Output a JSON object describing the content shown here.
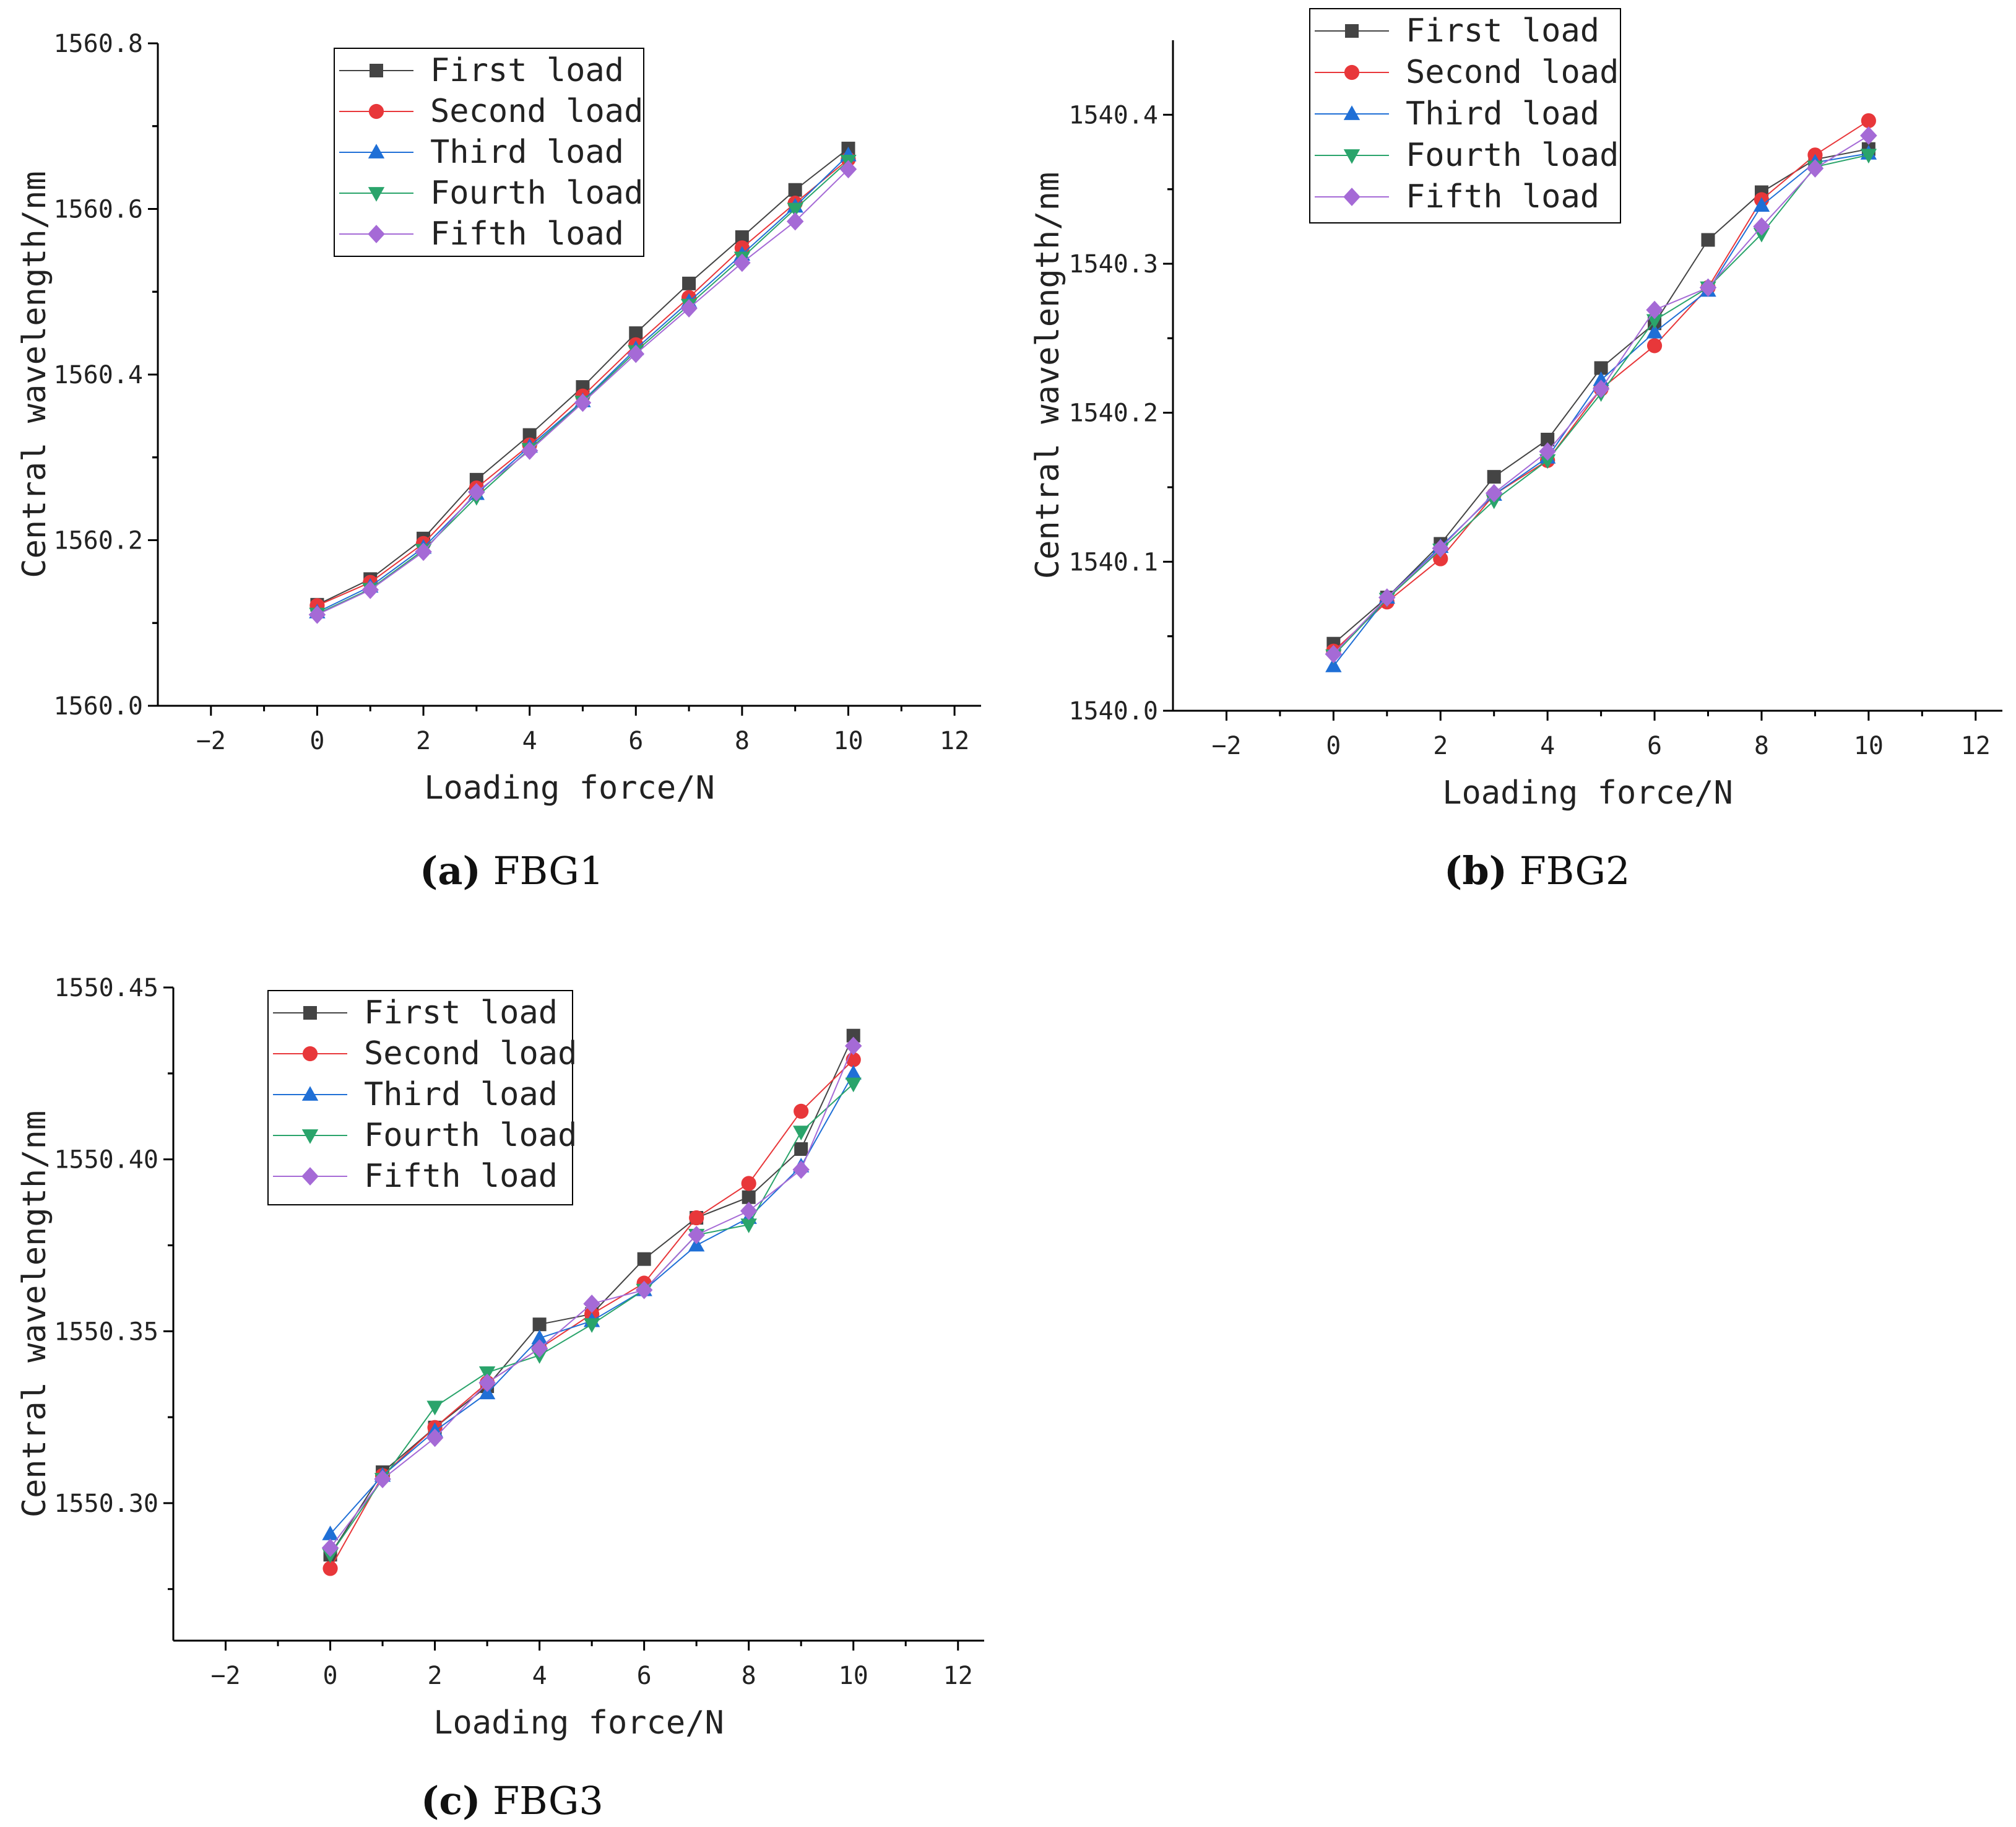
{
  "figure": {
    "colors": {
      "First load": "#444444",
      "Second load": "#e8373a",
      "Third load": "#1f6fd6",
      "Fourth load": "#2aa46b",
      "Fifth load": "#a56ad6"
    },
    "markers": {
      "First load": "square",
      "Second load": "circle",
      "Third load": "triangle-up",
      "Fourth load": "triangle-down",
      "Fifth load": "diamond"
    }
  },
  "chart_data": [
    {
      "id": "a",
      "type": "line",
      "caption_label": "(a)",
      "caption_text": "FBG1",
      "xlabel": "Loading force/N",
      "ylabel": "Central wavelength/nm",
      "xlim": [
        -3,
        12.5
      ],
      "ylim": [
        1560.0,
        1560.8
      ],
      "xticks": [
        -2,
        0,
        2,
        4,
        6,
        8,
        10,
        12
      ],
      "yticks": [
        1560.0,
        1560.2,
        1560.4,
        1560.6,
        1560.8
      ],
      "ytick_labels": [
        "1560.0",
        "1560.2",
        "1560.4",
        "1560.6",
        "1560.8"
      ],
      "legend_position": "top-center",
      "x": [
        0,
        1,
        2,
        3,
        4,
        5,
        6,
        7,
        8,
        9,
        10
      ],
      "series": [
        {
          "name": "First load",
          "values": [
            1560.122,
            1560.153,
            1560.202,
            1560.273,
            1560.327,
            1560.385,
            1560.45,
            1560.51,
            1560.566,
            1560.623,
            1560.673
          ]
        },
        {
          "name": "Second load",
          "values": [
            1560.121,
            1560.149,
            1560.196,
            1560.263,
            1560.315,
            1560.374,
            1560.436,
            1560.493,
            1560.553,
            1560.607,
            1560.66
          ]
        },
        {
          "name": "Third load",
          "values": [
            1560.113,
            1560.144,
            1560.191,
            1560.256,
            1560.313,
            1560.368,
            1560.431,
            1560.488,
            1560.545,
            1560.603,
            1560.665
          ]
        },
        {
          "name": "Fourth load",
          "values": [
            1560.111,
            1560.141,
            1560.188,
            1560.252,
            1560.31,
            1560.367,
            1560.428,
            1560.484,
            1560.541,
            1560.6,
            1560.658
          ]
        },
        {
          "name": "Fifth load",
          "values": [
            1560.11,
            1560.14,
            1560.186,
            1560.258,
            1560.308,
            1560.366,
            1560.425,
            1560.48,
            1560.535,
            1560.585,
            1560.648
          ]
        }
      ]
    },
    {
      "id": "b",
      "type": "line",
      "caption_label": "(b)",
      "caption_text": "FBG2",
      "xlabel": "Loading force/N",
      "ylabel": "Central wavelength/nm",
      "xlim": [
        -3,
        12.5
      ],
      "ylim": [
        1540.0,
        1540.45
      ],
      "xticks": [
        -2,
        0,
        2,
        4,
        6,
        8,
        10,
        12
      ],
      "yticks": [
        1540.0,
        1540.1,
        1540.2,
        1540.3,
        1540.4
      ],
      "ytick_labels": [
        "1540.0",
        "1540.1",
        "1540.2",
        "1540.3",
        "1540.4"
      ],
      "legend_position": "top-center",
      "x": [
        0,
        1,
        2,
        3,
        4,
        5,
        6,
        7,
        8,
        9,
        10
      ],
      "series": [
        {
          "name": "First load",
          "values": [
            1540.045,
            1540.076,
            1540.112,
            1540.157,
            1540.182,
            1540.23,
            1540.26,
            1540.316,
            1540.348,
            1540.37,
            1540.377
          ]
        },
        {
          "name": "Second load",
          "values": [
            1540.04,
            1540.073,
            1540.102,
            1540.145,
            1540.168,
            1540.216,
            1540.245,
            1540.284,
            1540.343,
            1540.373,
            1540.396
          ]
        },
        {
          "name": "Third load",
          "values": [
            1540.03,
            1540.076,
            1540.11,
            1540.145,
            1540.17,
            1540.222,
            1540.254,
            1540.282,
            1540.339,
            1540.368,
            1540.374
          ]
        },
        {
          "name": "Fourth load",
          "values": [
            1540.037,
            1540.075,
            1540.108,
            1540.141,
            1540.168,
            1540.213,
            1540.262,
            1540.284,
            1540.32,
            1540.365,
            1540.373
          ]
        },
        {
          "name": "Fifth load",
          "values": [
            1540.038,
            1540.076,
            1540.109,
            1540.146,
            1540.174,
            1540.216,
            1540.269,
            1540.284,
            1540.325,
            1540.364,
            1540.386
          ]
        }
      ]
    },
    {
      "id": "c",
      "type": "line",
      "caption_label": "(c)",
      "caption_text": "FBG3",
      "xlabel": "Loading force/N",
      "ylabel": "Central wavelength/nm",
      "xlim": [
        -3,
        12.5
      ],
      "ylim": [
        1550.26,
        1550.45
      ],
      "xticks": [
        -2,
        0,
        2,
        4,
        6,
        8,
        10,
        12
      ],
      "yticks": [
        1550.3,
        1550.35,
        1550.4,
        1550.45
      ],
      "ytick_labels": [
        "1550.30",
        "1550.35",
        "1550.40",
        "1550.45"
      ],
      "legend_position": "top-left",
      "x": [
        0,
        1,
        2,
        3,
        4,
        5,
        6,
        7,
        8,
        9,
        10
      ],
      "series": [
        {
          "name": "First load",
          "values": [
            1550.285,
            1550.309,
            1550.322,
            1550.334,
            1550.352,
            1550.355,
            1550.371,
            1550.383,
            1550.389,
            1550.403,
            1550.436
          ]
        },
        {
          "name": "Second load",
          "values": [
            1550.281,
            1550.308,
            1550.322,
            1550.335,
            1550.345,
            1550.355,
            1550.364,
            1550.383,
            1550.393,
            1550.414,
            1550.429
          ]
        },
        {
          "name": "Third load",
          "values": [
            1550.291,
            1550.308,
            1550.321,
            1550.332,
            1550.348,
            1550.353,
            1550.362,
            1550.375,
            1550.383,
            1550.398,
            1550.425
          ]
        },
        {
          "name": "Fourth load",
          "values": [
            1550.285,
            1550.307,
            1550.328,
            1550.338,
            1550.343,
            1550.352,
            1550.362,
            1550.378,
            1550.381,
            1550.408,
            1550.422
          ]
        },
        {
          "name": "Fifth load",
          "values": [
            1550.287,
            1550.307,
            1550.319,
            1550.335,
            1550.345,
            1550.358,
            1550.362,
            1550.378,
            1550.385,
            1550.397,
            1550.433
          ]
        }
      ]
    }
  ]
}
